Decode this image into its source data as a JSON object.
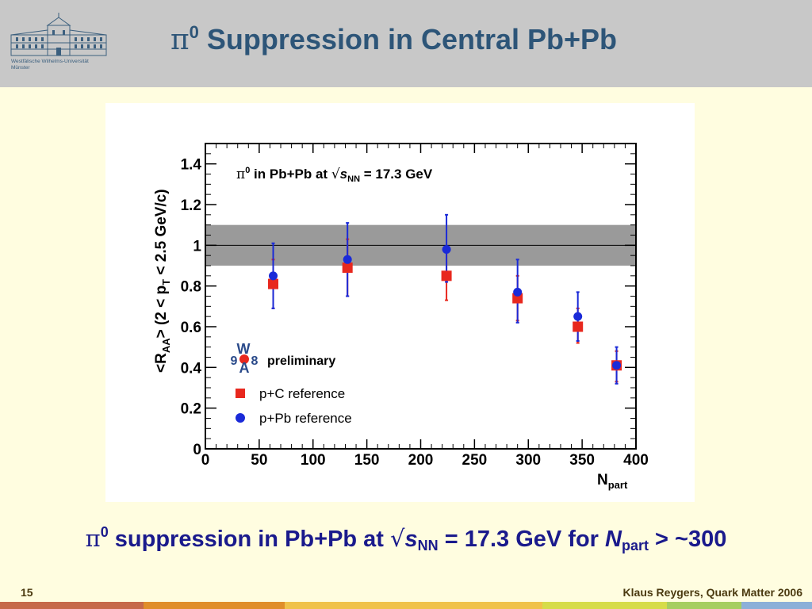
{
  "slide": {
    "title_symbol": "π",
    "title_sup": "0",
    "title_text": " Suppression in Central Pb+Pb",
    "logo_text_line1": "Westfälische Wilhelms-Universität",
    "logo_text_line2": "Münster",
    "caption": {
      "pi": "π",
      "sup": "0",
      "text1": " suppression in Pb+Pb at ",
      "sqrt": "√",
      "s": "s",
      "sub": "NN",
      "text2": " = 17.3 GeV for ",
      "n": "N",
      "n_sub": "part",
      "text3": " > ~300"
    },
    "page_number": "15",
    "author": "Klaus Reygers, Quark Matter 2006",
    "strip_colors": [
      "#c66a4a",
      "#e08e2a",
      "#f0c24a",
      "#d6dc4a",
      "#a6ce60",
      "#8cb0d8"
    ]
  },
  "chart_data": {
    "type": "scatter",
    "title": "",
    "plot_text": {
      "pi": "π",
      "sup": "0",
      "text": " in Pb+Pb at ",
      "sqrt": "√",
      "s": "s",
      "sub": "NN",
      "text2": " = 17.3 GeV"
    },
    "xlabel": "N",
    "xlabel_sub": "part",
    "ylabel_parts": {
      "a": "<R",
      "a_sub": "AA",
      "b": "> (2 < p",
      "b_sub": "T",
      "c": " < 2.5 GeV/c)"
    },
    "xlim": [
      0,
      400
    ],
    "ylim": [
      0,
      1.5
    ],
    "x_ticks": [
      "0",
      "50",
      "100",
      "150",
      "200",
      "250",
      "300",
      "350",
      "400"
    ],
    "y_ticks": [
      "0",
      "0.2",
      "0.4",
      "0.6",
      "0.8",
      "1",
      "1.2",
      "1.4"
    ],
    "band": {
      "center": 1.0,
      "low": 0.9,
      "high": 1.1
    },
    "wa98_label_top": "W",
    "wa98_label_mid": "9",
    "wa98_label_mid2": "8",
    "wa98_label_bot": "A",
    "preliminary": "preliminary",
    "series": [
      {
        "name": "p+C reference",
        "marker": "square",
        "color": "#e8281e",
        "points": [
          {
            "x": 63,
            "y": 0.81,
            "ylo": 0.69,
            "yhi": 0.93
          },
          {
            "x": 132,
            "y": 0.89,
            "ylo": 0.75,
            "yhi": 1.03
          },
          {
            "x": 224,
            "y": 0.85,
            "ylo": 0.73,
            "yhi": 0.98
          },
          {
            "x": 290,
            "y": 0.74,
            "ylo": 0.63,
            "yhi": 0.85
          },
          {
            "x": 346,
            "y": 0.6,
            "ylo": 0.52,
            "yhi": 0.69
          },
          {
            "x": 382,
            "y": 0.41,
            "ylo": 0.33,
            "yhi": 0.48
          }
        ]
      },
      {
        "name": "p+Pb reference",
        "marker": "circle",
        "color": "#1a2ad8",
        "points": [
          {
            "x": 63,
            "y": 0.85,
            "ylo": 0.69,
            "yhi": 1.01
          },
          {
            "x": 132,
            "y": 0.93,
            "ylo": 0.75,
            "yhi": 1.11
          },
          {
            "x": 224,
            "y": 0.98,
            "ylo": 0.82,
            "yhi": 1.15
          },
          {
            "x": 290,
            "y": 0.77,
            "ylo": 0.62,
            "yhi": 0.93
          },
          {
            "x": 346,
            "y": 0.65,
            "ylo": 0.53,
            "yhi": 0.77
          },
          {
            "x": 382,
            "y": 0.41,
            "ylo": 0.32,
            "yhi": 0.5
          }
        ]
      }
    ]
  }
}
